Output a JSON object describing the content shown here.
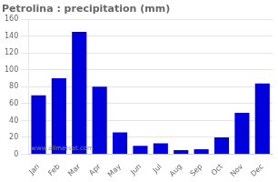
{
  "chart_data": {
    "type": "bar",
    "title": "Petrolina : precipitation (mm)",
    "categories": [
      "Jan",
      "Feb",
      "Mar",
      "Apr",
      "May",
      "Jun",
      "Jul",
      "Aug",
      "Sep",
      "Oct",
      "Nov",
      "Dec"
    ],
    "values": [
      70,
      90,
      145,
      80,
      26,
      10,
      13,
      5,
      6,
      20,
      49,
      84
    ],
    "color": "#0000DD",
    "ylim": [
      0,
      160
    ],
    "yticks": [
      0,
      20,
      40,
      60,
      80,
      100,
      120,
      140,
      160
    ],
    "grid": true,
    "annotations": [
      "www.allmetsat.com"
    ]
  }
}
